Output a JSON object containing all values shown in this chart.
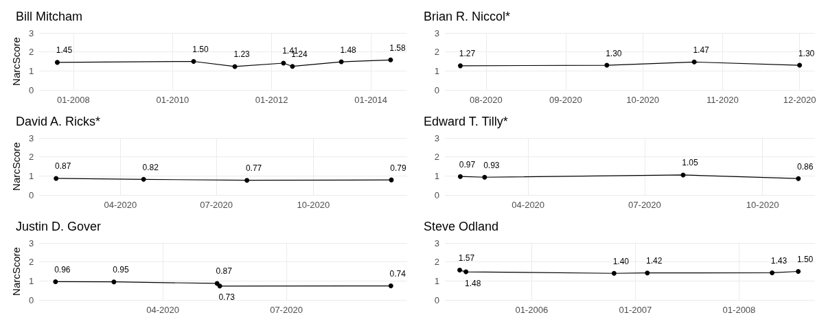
{
  "chart_data": [
    {
      "type": "line",
      "title": "Bill Mitcham",
      "ylabel": "NarcScore",
      "x": [
        "2007-09-05",
        "2010-06-05",
        "2011-04-05",
        "2012-03-28",
        "2012-06-02",
        "2013-05-28",
        "2014-05-26"
      ],
      "values": [
        1.45,
        1.5,
        1.23,
        1.41,
        1.24,
        1.48,
        1.58
      ],
      "value_labels": [
        "1.45",
        "1.50",
        "1.23",
        "1.41",
        "1.24",
        "1.48",
        "1.58"
      ],
      "color": "#000000",
      "marker": "circle",
      "grid": true,
      "xlim": [
        "2007-04-25",
        "2014-09-25"
      ],
      "xticks": [
        {
          "value": "2008-01",
          "label": "01-2008"
        },
        {
          "value": "2010-01",
          "label": "01-2010"
        },
        {
          "value": "2012-01",
          "label": "01-2012"
        },
        {
          "value": "2014-01",
          "label": "01-2014"
        }
      ],
      "ylim": [
        0,
        3
      ],
      "yticks": [
        0,
        1,
        2,
        3
      ]
    },
    {
      "type": "line",
      "title": "Brian R. Niccol*",
      "x": [
        "2020-07-22",
        "2020-09-17",
        "2020-10-21",
        "2020-12-01"
      ],
      "values": [
        1.27,
        1.3,
        1.47,
        1.3
      ],
      "value_labels": [
        "1.27",
        "1.30",
        "1.47",
        "1.30"
      ],
      "color": "#000000",
      "marker": "circle",
      "grid": true,
      "xlim": [
        "2020-07-16",
        "2020-12-07"
      ],
      "xticks": [
        {
          "value": "2020-08",
          "label": "08-2020"
        },
        {
          "value": "2020-09",
          "label": "09-2020"
        },
        {
          "value": "2020-10",
          "label": "10-2020"
        },
        {
          "value": "2020-11",
          "label": "11-2020"
        },
        {
          "value": "2020-12",
          "label": "12-2020"
        }
      ],
      "ylim": [
        0,
        3
      ],
      "yticks": [
        0,
        1,
        2,
        3
      ]
    },
    {
      "type": "line",
      "title": "David A. Ricks*",
      "ylabel": "NarcScore",
      "x": [
        "2020-01-31",
        "2020-04-23",
        "2020-07-30",
        "2020-12-14"
      ],
      "values": [
        0.87,
        0.82,
        0.77,
        0.79
      ],
      "value_labels": [
        "0.87",
        "0.82",
        "0.77",
        "0.79"
      ],
      "color": "#000000",
      "marker": "circle",
      "grid": true,
      "xlim": [
        "2020-01-15",
        "2020-12-29"
      ],
      "xticks": [
        {
          "value": "2020-04",
          "label": "04-2020"
        },
        {
          "value": "2020-07",
          "label": "07-2020"
        },
        {
          "value": "2020-10",
          "label": "10-2020"
        }
      ],
      "ylim": [
        0,
        3
      ],
      "yticks": [
        0,
        1,
        2,
        3
      ]
    },
    {
      "type": "line",
      "title": "Edward T. Tilly*",
      "x": [
        "2020-02-08",
        "2020-02-27",
        "2020-07-31",
        "2020-10-29"
      ],
      "values": [
        0.97,
        0.93,
        1.05,
        0.86
      ],
      "value_labels": [
        "0.97",
        "0.93",
        "1.05",
        "0.86"
      ],
      "color": "#000000",
      "marker": "circle",
      "grid": true,
      "xlim": [
        "2020-01-27",
        "2020-11-11"
      ],
      "xticks": [
        {
          "value": "2020-04",
          "label": "04-2020"
        },
        {
          "value": "2020-07",
          "label": "07-2020"
        },
        {
          "value": "2020-10",
          "label": "10-2020"
        }
      ],
      "ylim": [
        0,
        3
      ],
      "yticks": [
        0,
        1,
        2,
        3
      ]
    },
    {
      "type": "line",
      "title": "Justin D. Gover",
      "ylabel": "NarcScore",
      "x": [
        "2020-01-13",
        "2020-02-25",
        "2020-05-11",
        "2020-05-13",
        "2020-09-16"
      ],
      "values": [
        0.96,
        0.95,
        0.87,
        0.73,
        0.74
      ],
      "value_labels": [
        "0.96",
        "0.95",
        "0.87",
        "0.73",
        "0.74"
      ],
      "color": "#000000",
      "marker": "circle",
      "grid": true,
      "xlim": [
        "2020-01-01",
        "2020-09-28"
      ],
      "xticks": [
        {
          "value": "2020-04",
          "label": "04-2020"
        },
        {
          "value": "2020-07",
          "label": "07-2020"
        }
      ],
      "ylim": [
        0,
        3
      ],
      "yticks": [
        0,
        1,
        2,
        3
      ]
    },
    {
      "type": "line",
      "title": "Steve Odland",
      "x": [
        "2005-04-23",
        "2005-05-15",
        "2006-10-18",
        "2007-02-12",
        "2008-04-26",
        "2008-07-27"
      ],
      "values": [
        1.57,
        1.48,
        1.4,
        1.42,
        1.43,
        1.5
      ],
      "value_labels": [
        "1.57",
        "1.48",
        "1.40",
        "1.42",
        "1.43",
        "1.50"
      ],
      "color": "#000000",
      "marker": "circle",
      "grid": true,
      "xlim": [
        "2005-03-02",
        "2008-09-24"
      ],
      "xticks": [
        {
          "value": "2006-01",
          "label": "01-2006"
        },
        {
          "value": "2007-01",
          "label": "01-2007"
        },
        {
          "value": "2008-01",
          "label": "01-2008"
        }
      ],
      "ylim": [
        0,
        3
      ],
      "yticks": [
        0,
        1,
        2,
        3
      ]
    }
  ]
}
